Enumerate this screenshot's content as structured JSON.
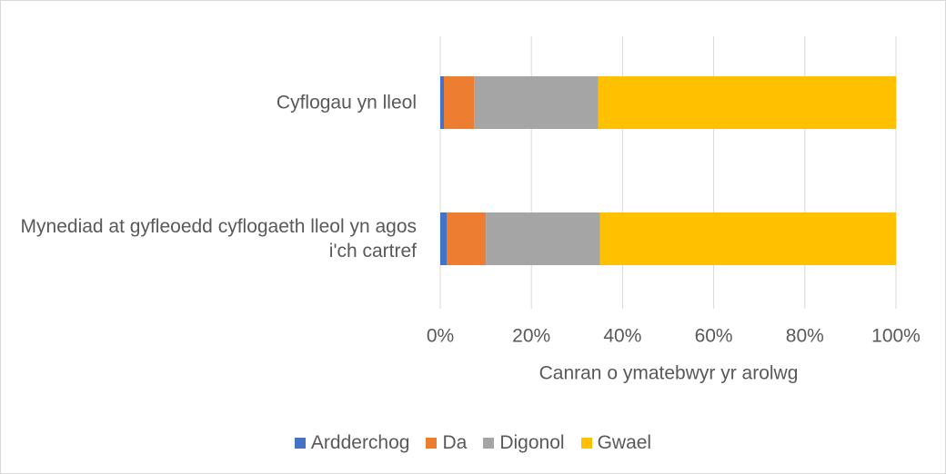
{
  "chart_data": {
    "type": "stacked_barh",
    "categories": [
      "Cyflogau yn lleol",
      "Mynediad at gyfleoedd cyflogaeth lleol yn agos i'ch cartref"
    ],
    "series": [
      {
        "name": "Ardderchog",
        "color": "#4472c4",
        "values": [
          0.8,
          1.4
        ]
      },
      {
        "name": "Da",
        "color": "#ed7d31",
        "values": [
          6.6,
          8.6
        ]
      },
      {
        "name": "Digonol",
        "color": "#a5a5a5",
        "values": [
          27.3,
          25.1
        ]
      },
      {
        "name": "Gwael",
        "color": "#ffc000",
        "values": [
          65.3,
          64.9
        ]
      }
    ],
    "xlabel": "Canran o ymatebwyr yr arolwg",
    "xlim": [
      0,
      100
    ],
    "xticks": [
      {
        "value": 0,
        "label": "0%"
      },
      {
        "value": 20,
        "label": "20%"
      },
      {
        "value": 40,
        "label": "40%"
      },
      {
        "value": 60,
        "label": "60%"
      },
      {
        "value": 80,
        "label": "80%"
      },
      {
        "value": 100,
        "label": "100%"
      }
    ],
    "grid": true,
    "legend": "bottom"
  }
}
